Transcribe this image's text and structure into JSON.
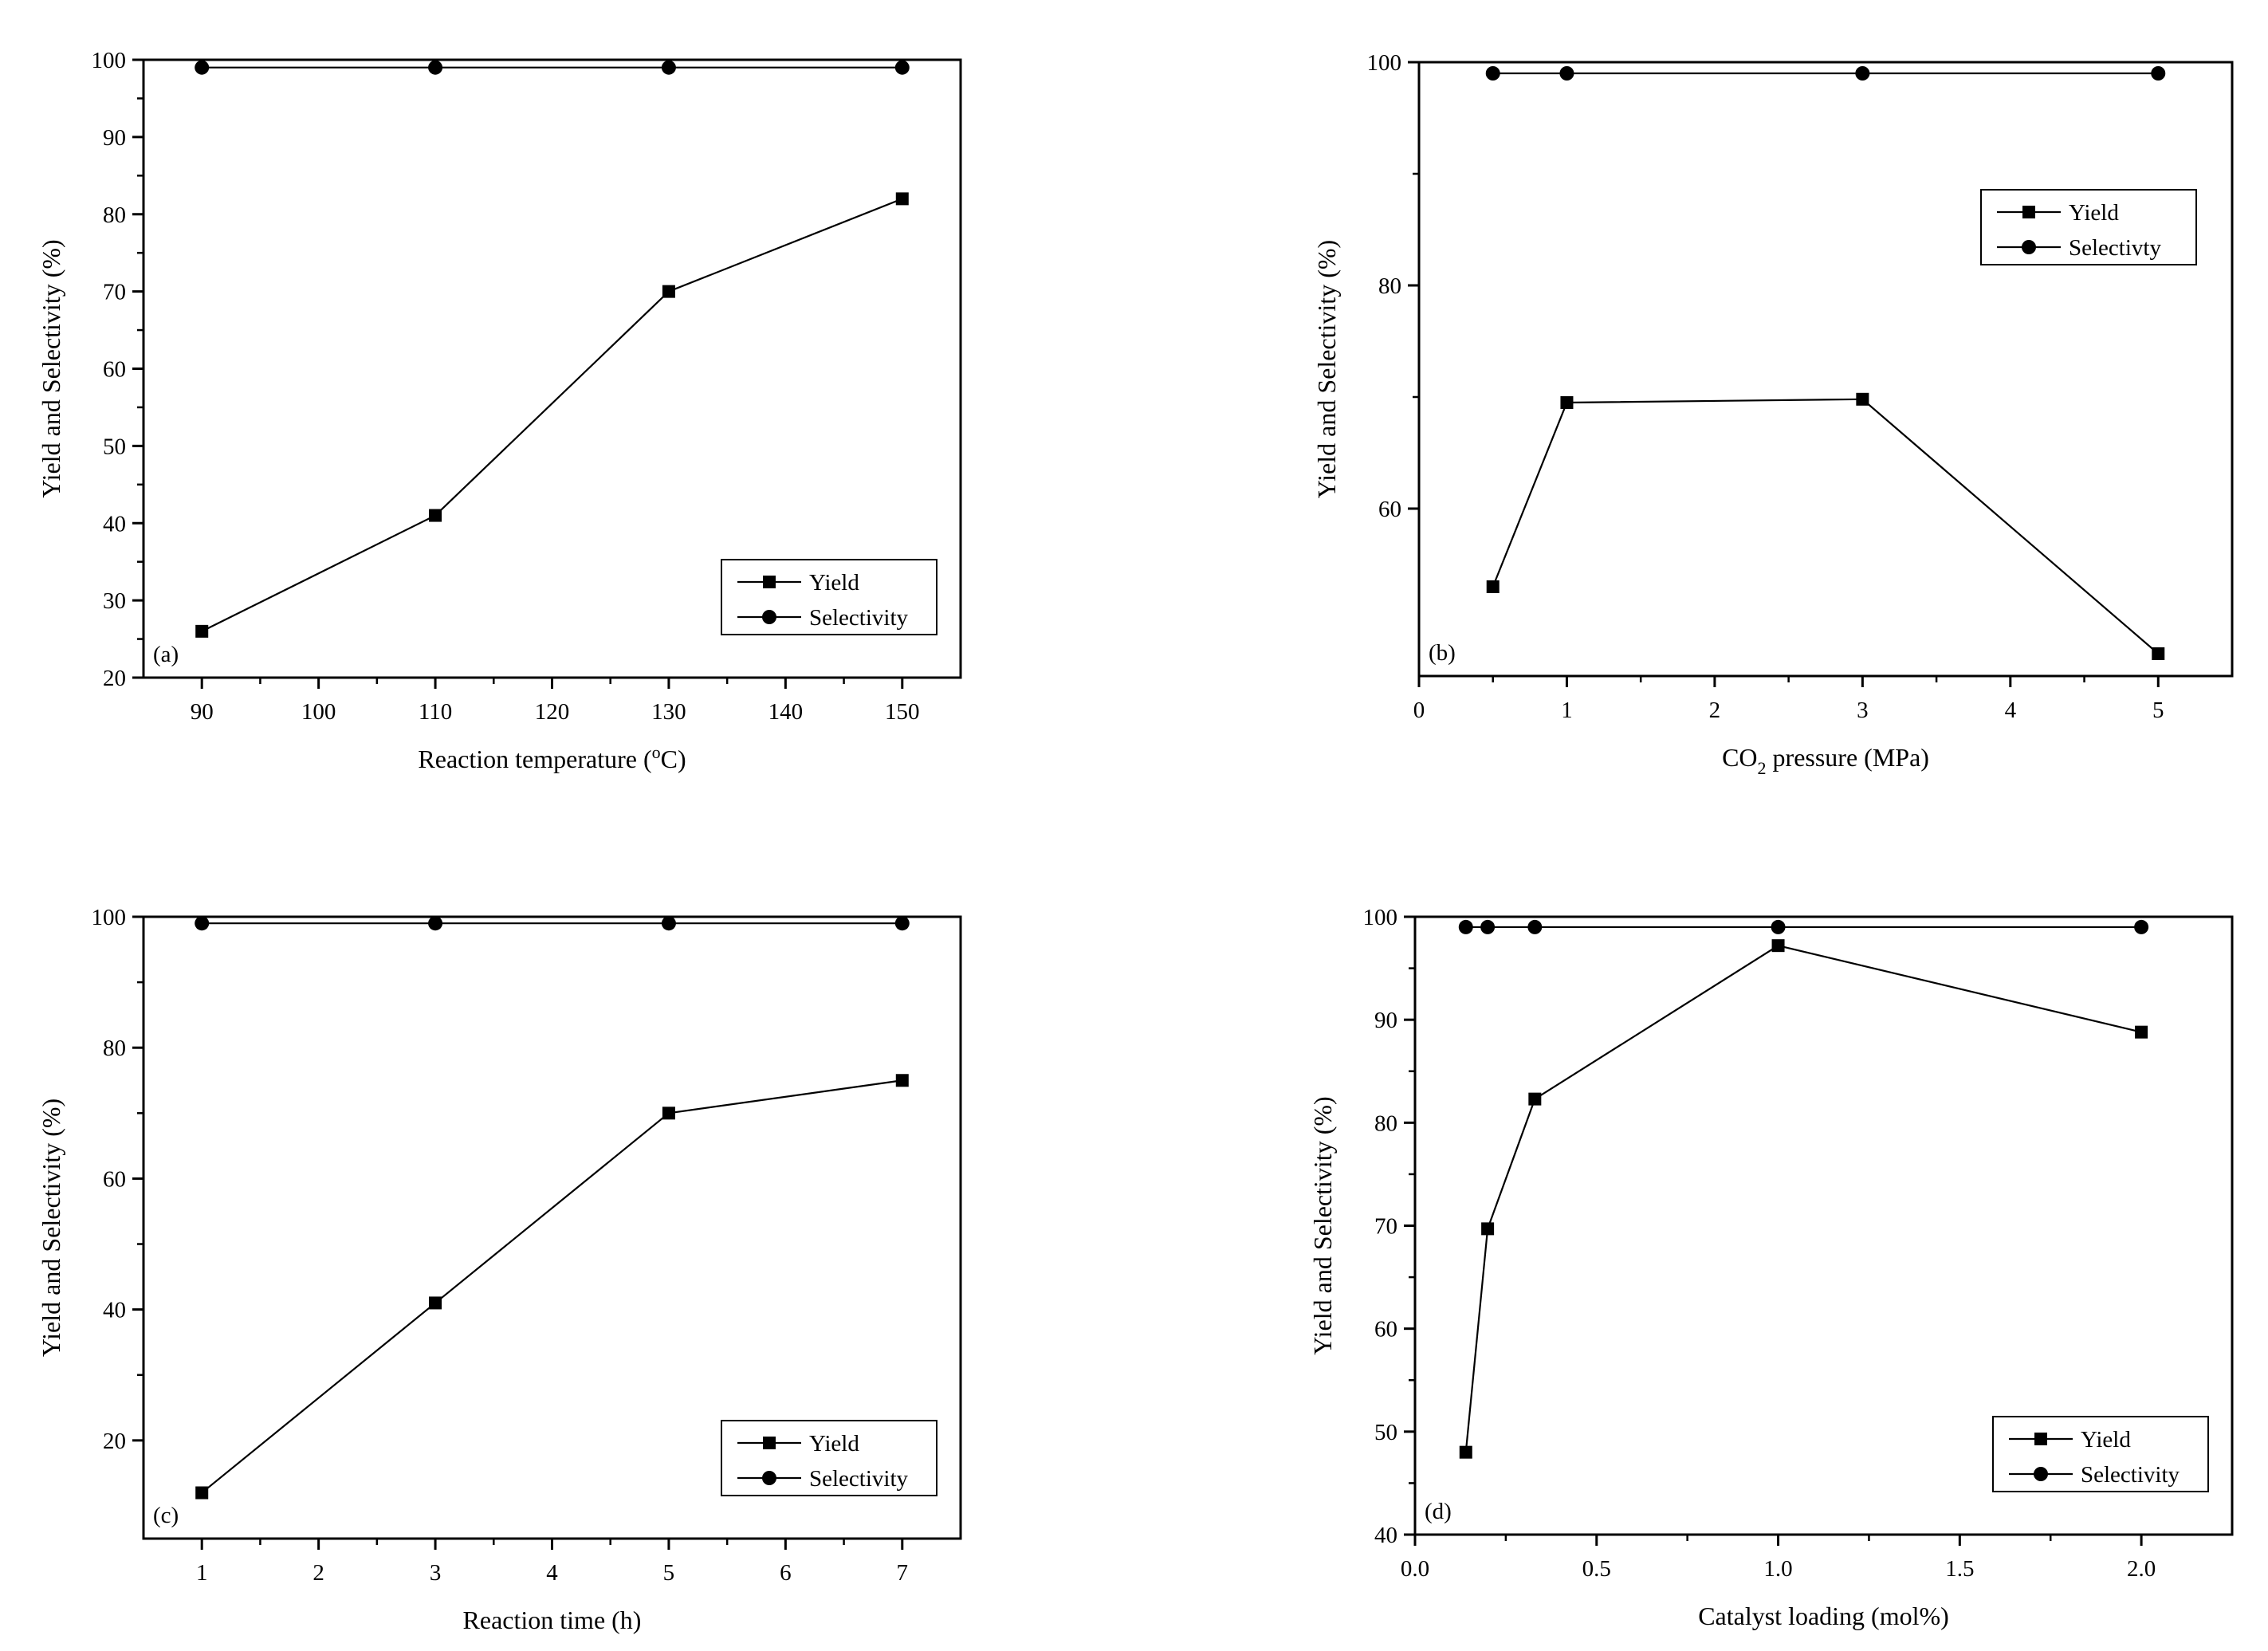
{
  "chart_data": [
    {
      "type": "line",
      "panel_label": "(a)",
      "xlabel": "Reaction temperature (",
      "xlabel_sup": "o",
      "xlabel_tail": "C)",
      "ylabel": "Yield and Selectivity (%)",
      "xlim": [
        85,
        155
      ],
      "ylim": [
        20,
        100
      ],
      "xticks": [
        90,
        100,
        110,
        120,
        130,
        140,
        150
      ],
      "yticks": [
        20,
        30,
        40,
        50,
        60,
        70,
        80,
        90,
        100
      ],
      "legend": {
        "placement": "bottom-right",
        "entries": [
          "Yield",
          "Selectivity"
        ]
      },
      "series": [
        {
          "name": "Yield",
          "marker": "square",
          "x": [
            90,
            110,
            130,
            150
          ],
          "y": [
            26,
            41,
            70,
            82
          ]
        },
        {
          "name": "Selectivity",
          "marker": "circle",
          "x": [
            90,
            110,
            130,
            150
          ],
          "y": [
            99,
            99,
            99,
            99
          ]
        }
      ]
    },
    {
      "type": "line",
      "panel_label": "(b)",
      "xlabel": "CO",
      "xlabel_sub": "2",
      "xlabel_tail": " pressure (MPa)",
      "ylabel": "Yield and Selectivity (%)",
      "xlim": [
        0,
        5.5
      ],
      "ylim": [
        45,
        100
      ],
      "xticks": [
        0,
        1,
        2,
        3,
        4,
        5
      ],
      "yticks": [
        60,
        80,
        100
      ],
      "legend": {
        "placement": "upper-right",
        "entries": [
          "Yield",
          "Selectivty"
        ]
      },
      "series": [
        {
          "name": "Yield",
          "marker": "square",
          "x": [
            0.5,
            1,
            3,
            5
          ],
          "y": [
            53,
            69.5,
            69.8,
            47
          ]
        },
        {
          "name": "Selectivty",
          "marker": "circle",
          "x": [
            0.5,
            1,
            3,
            5
          ],
          "y": [
            99,
            99,
            99,
            99
          ]
        }
      ]
    },
    {
      "type": "line",
      "panel_label": "(c)",
      "xlabel": "Reaction time (h)",
      "ylabel": "Yield and Selectivity (%)",
      "xlim": [
        0.5,
        7.5
      ],
      "ylim": [
        5,
        100
      ],
      "xticks": [
        1,
        2,
        3,
        4,
        5,
        6,
        7
      ],
      "yticks": [
        20,
        40,
        60,
        80,
        100
      ],
      "legend": {
        "placement": "bottom-right",
        "entries": [
          "Yield",
          "Selectivity"
        ]
      },
      "series": [
        {
          "name": "Yield",
          "marker": "square",
          "x": [
            1,
            3,
            5,
            7
          ],
          "y": [
            12,
            41,
            70,
            75
          ]
        },
        {
          "name": "Selectivity",
          "marker": "circle",
          "x": [
            1,
            3,
            5,
            7
          ],
          "y": [
            99,
            99,
            99,
            99
          ]
        }
      ]
    },
    {
      "type": "line",
      "panel_label": "(d)",
      "xlabel": "Catalyst loading (mol%)",
      "ylabel": "Yield and Selectivity (%)",
      "xlim": [
        0,
        2.25
      ],
      "ylim": [
        40,
        100
      ],
      "xticks": [
        0.0,
        0.5,
        1.0,
        1.5,
        2.0
      ],
      "yticks": [
        40,
        50,
        60,
        70,
        80,
        90,
        100
      ],
      "legend": {
        "placement": "bottom-right",
        "entries": [
          "Yield",
          "Selectivity"
        ]
      },
      "series": [
        {
          "name": "Yield",
          "marker": "square",
          "x": [
            0.14,
            0.2,
            0.33,
            1.0,
            2.0
          ],
          "y": [
            48,
            69.7,
            82.3,
            97.2,
            88.8
          ]
        },
        {
          "name": "Selectivity",
          "marker": "circle",
          "x": [
            0.14,
            0.2,
            0.33,
            1.0,
            2.0
          ],
          "y": [
            99,
            99,
            99,
            99,
            99
          ]
        }
      ]
    }
  ]
}
